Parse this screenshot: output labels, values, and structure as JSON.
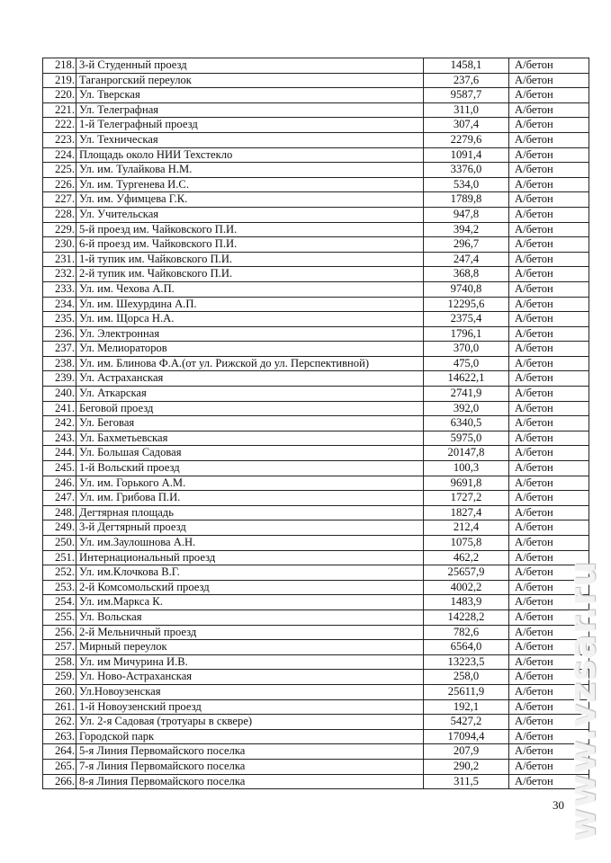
{
  "table": {
    "rows": [
      {
        "num": "218.",
        "name": "3-й Студенный проезд",
        "value": "1458,1",
        "material": "А/бетон"
      },
      {
        "num": "219.",
        "name": "Таганрогский переулок",
        "value": "237,6",
        "material": "А/бетон"
      },
      {
        "num": "220.",
        "name": "Ул. Тверская",
        "value": "9587,7",
        "material": "А/бетон"
      },
      {
        "num": "221.",
        "name": "Ул. Телеграфная",
        "value": "311,0",
        "material": "А/бетон"
      },
      {
        "num": "222.",
        "name": "1-й Телеграфный проезд",
        "value": "307,4",
        "material": "А/бетон"
      },
      {
        "num": "223.",
        "name": "Ул. Техническая",
        "value": "2279,6",
        "material": "А/бетон"
      },
      {
        "num": "224.",
        "name": "Площадь около НИИ Техстекло",
        "value": "1091,4",
        "material": "А/бетон"
      },
      {
        "num": "225.",
        "name": "Ул. им. Тулайкова Н.М.",
        "value": "3376,0",
        "material": "А/бетон"
      },
      {
        "num": "226.",
        "name": "Ул. им. Тургенева И.С.",
        "value": "534,0",
        "material": "А/бетон"
      },
      {
        "num": "227.",
        "name": "Ул. им. Уфимцева Г.К.",
        "value": "1789,8",
        "material": "А/бетон"
      },
      {
        "num": "228.",
        "name": "Ул. Учительская",
        "value": "947,8",
        "material": "А/бетон"
      },
      {
        "num": "229.",
        "name": "5-й проезд им. Чайковского П.И.",
        "value": "394,2",
        "material": "А/бетон"
      },
      {
        "num": "230.",
        "name": "6-й проезд им. Чайковского П.И.",
        "value": "296,7",
        "material": "А/бетон"
      },
      {
        "num": "231.",
        "name": "1-й тупик им. Чайковского П.И.",
        "value": "247,4",
        "material": "А/бетон"
      },
      {
        "num": "232.",
        "name": "2-й тупик им. Чайковского П.И.",
        "value": "368,8",
        "material": "А/бетон"
      },
      {
        "num": "233.",
        "name": "Ул. им. Чехова А.П.",
        "value": "9740,8",
        "material": "А/бетон"
      },
      {
        "num": "234.",
        "name": "Ул. им. Шехурдина А.П.",
        "value": "12295,6",
        "material": "А/бетон"
      },
      {
        "num": "235.",
        "name": "Ул. им. Щорса Н.А.",
        "value": "2375,4",
        "material": "А/бетон"
      },
      {
        "num": "236.",
        "name": "Ул. Электронная",
        "value": "1796,1",
        "material": "А/бетон"
      },
      {
        "num": "237.",
        "name": "Ул. Мелиораторов",
        "value": "370,0",
        "material": "А/бетон"
      },
      {
        "num": "238.",
        "name": "Ул. им. Блинова Ф.А.(от  ул. Рижской до ул. Перспективной)",
        "value": "475,0",
        "material": "А/бетон"
      },
      {
        "num": "239.",
        "name": "Ул. Астраханская",
        "value": "14622,1",
        "material": "А/бетон"
      },
      {
        "num": "240.",
        "name": "Ул. Аткарская",
        "value": "2741,9",
        "material": "А/бетон"
      },
      {
        "num": "241.",
        "name": "Беговой проезд",
        "value": "392,0",
        "material": "А/бетон"
      },
      {
        "num": "242.",
        "name": "Ул. Беговая",
        "value": "6340,5",
        "material": "А/бетон"
      },
      {
        "num": "243.",
        "name": "Ул. Бахметьевская",
        "value": "5975,0",
        "material": "А/бетон"
      },
      {
        "num": "244.",
        "name": "Ул. Большая Садовая",
        "value": "20147,8",
        "material": "А/бетон"
      },
      {
        "num": "245.",
        "name": "1-й Вольский проезд",
        "value": "100,3",
        "material": "А/бетон"
      },
      {
        "num": "246.",
        "name": "Ул. им. Горького А.М.",
        "value": "9691,8",
        "material": "А/бетон"
      },
      {
        "num": "247.",
        "name": "Ул. им. Грибова  П.И.",
        "value": "1727,2",
        "material": "А/бетон"
      },
      {
        "num": "248.",
        "name": "Дегтярная площадь",
        "value": "1827,4",
        "material": "А/бетон"
      },
      {
        "num": "249.",
        "name": "3-й Дегтярный проезд",
        "value": "212,4",
        "material": "А/бетон"
      },
      {
        "num": "250.",
        "name": "Ул. им.Заулошнова  А.Н.",
        "value": "1075,8",
        "material": "А/бетон"
      },
      {
        "num": "251.",
        "name": "Интернациональный проезд",
        "value": "462,2",
        "material": "А/бетон"
      },
      {
        "num": "252.",
        "name": "Ул. им.Клочкова В.Г.",
        "value": "25657,9",
        "material": "А/бетон"
      },
      {
        "num": "253.",
        "name": "2-й Комсомольский проезд",
        "value": "4002,2",
        "material": "А/бетон"
      },
      {
        "num": "254.",
        "name": "Ул. им.Маркса К.",
        "value": "1483,9",
        "material": "А/бетон"
      },
      {
        "num": "255.",
        "name": "Ул. Вольская",
        "value": "14228,2",
        "material": "А/бетон"
      },
      {
        "num": "256.",
        "name": "2-й Мельничный проезд",
        "value": "782,6",
        "material": "А/бетон"
      },
      {
        "num": "257.",
        "name": "Мирный переулок",
        "value": "6564,0",
        "material": "А/бетон"
      },
      {
        "num": "258.",
        "name": "Ул. им Мичурина И.В.",
        "value": "13223,5",
        "material": "А/бетон"
      },
      {
        "num": "259.",
        "name": "Ул. Ново-Астраханская",
        "value": "258,0",
        "material": "А/бетон"
      },
      {
        "num": "260.",
        "name": "Ул.Новоузенская",
        "value": "25611,9",
        "material": "А/бетон"
      },
      {
        "num": "261.",
        "name": "1-й Новоузенский проезд",
        "value": "192,1",
        "material": "А/бетон"
      },
      {
        "num": "262.",
        "name": "Ул. 2-я Садовая (тротуары в сквере)",
        "value": "5427,2",
        "material": "А/бетон"
      },
      {
        "num": "263.",
        "name": "Городской парк",
        "value": "17094,4",
        "material": "А/бетон"
      },
      {
        "num": "264.",
        "name": "5-я Линия Первомайского поселка",
        "value": "207,9",
        "material": "А/бетон"
      },
      {
        "num": "265.",
        "name": "7-я Линия Первомайского поселка",
        "value": "290,2",
        "material": "А/бетон"
      },
      {
        "num": "266.",
        "name": "8-я Линия Первомайского поселка",
        "value": "311,5",
        "material": "А/бетон"
      }
    ]
  },
  "page_number": "30",
  "watermark": "www.vzsar.ru"
}
